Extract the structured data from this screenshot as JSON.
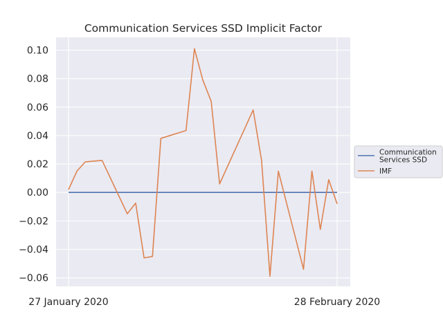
{
  "chart_data": {
    "type": "line",
    "title": "Communication Services SSD Implicit Factor",
    "xlabel": "",
    "ylabel": "",
    "x_tick_labels": [
      "27 January 2020",
      "28 February 2020"
    ],
    "ylim": [
      -0.066,
      0.109
    ],
    "yticks": [
      -0.06,
      -0.04,
      -0.02,
      0.0,
      0.02,
      0.04,
      0.06,
      0.08,
      0.1
    ],
    "ytick_labels": [
      "−0.06",
      "−0.04",
      "−0.02",
      "0.00",
      "0.02",
      "0.04",
      "0.06",
      "0.08",
      "0.10"
    ],
    "grid": true,
    "legend_position": "center-right outside",
    "x": [
      "2020-01-27",
      "2020-01-28",
      "2020-01-29",
      "2020-01-30",
      "2020-01-31",
      "2020-02-03",
      "2020-02-04",
      "2020-02-05",
      "2020-02-06",
      "2020-02-07",
      "2020-02-10",
      "2020-02-11",
      "2020-02-12",
      "2020-02-13",
      "2020-02-14",
      "2020-02-18",
      "2020-02-19",
      "2020-02-20",
      "2020-02-21",
      "2020-02-24",
      "2020-02-25",
      "2020-02-26",
      "2020-02-27",
      "2020-02-28"
    ],
    "series": [
      {
        "name": "Communication\nServices SSD",
        "color": "#4c72b0",
        "values": [
          0,
          0,
          0,
          0,
          0,
          0,
          0,
          0,
          0,
          0,
          0,
          0,
          0,
          0,
          0,
          0,
          0,
          0,
          0,
          0,
          0,
          0,
          0,
          0
        ]
      },
      {
        "name": " IMF",
        "color": "#dd8452",
        "values": [
          0.002,
          0.015,
          0.0215,
          0.022,
          0.0225,
          -0.015,
          -0.0075,
          -0.046,
          -0.045,
          0.038,
          0.0435,
          0.101,
          0.079,
          0.064,
          0.006,
          0.058,
          0.0225,
          -0.059,
          0.015,
          -0.054,
          0.015,
          -0.026,
          0.009,
          -0.008
        ]
      }
    ]
  }
}
